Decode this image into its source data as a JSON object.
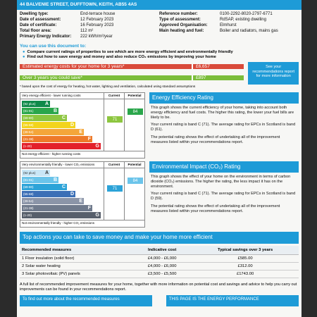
{
  "header": {
    "address": "44 BALVENIE STREET, DUFFTOWN, KEITH, AB55 4AS"
  },
  "info_left": [
    {
      "k": "Dwelling type:",
      "v": "End-terrace house"
    },
    {
      "k": "Date of assessment:",
      "v": "12 February 2023"
    },
    {
      "k": "Date of certificate:",
      "v": "16 February 2023"
    },
    {
      "k": "Total floor area:",
      "v": "112 m²"
    },
    {
      "k": "Primary Energy Indicator:",
      "v": "222 kWh/m²/year"
    }
  ],
  "info_right": [
    {
      "k": "Reference number:",
      "v": "0100-2292-8020-2797-6771"
    },
    {
      "k": "Type of assessment:",
      "v": "RdSAP, existing dwelling"
    },
    {
      "k": "Approved Organisation:",
      "v": "Elmhurst"
    },
    {
      "k": "Main heating and fuel:",
      "v": "Boiler and radiators, mains gas"
    }
  ],
  "use_doc": {
    "heading": "You can use this document to:",
    "bullets": [
      "Compare current ratings of properties to see which are more energy efficient and environmentally friendly",
      "Find out how to save energy and money and also reduce CO₂ emissions by improving your home"
    ]
  },
  "costs": {
    "row1_label": "Estimated energy costs for your home for 3 years*",
    "row1_amount": "£6,657",
    "row2_label": "Over 3 years you could save*",
    "row2_amount": "£897",
    "see_box": "See your recommendations report for more information",
    "footnote": "* based upon the cost of energy for heating, hot water, lighting and ventilation, calculated using standard assumptions"
  },
  "eer": {
    "top_label": "Very energy efficient - lower running costs",
    "bottom_label": "Not energy efficient - higher running costs",
    "col_current": "Current",
    "col_potential": "Potential",
    "bands": [
      {
        "range": "(92 plus)",
        "letter": "A"
      },
      {
        "range": "(81-91)",
        "letter": "B"
      },
      {
        "range": "(69-80)",
        "letter": "C"
      },
      {
        "range": "(55-68)",
        "letter": "D"
      },
      {
        "range": "(39-54)",
        "letter": "E"
      },
      {
        "range": "(21-38)",
        "letter": "F"
      },
      {
        "range": "(1-20)",
        "letter": "G"
      }
    ],
    "current": "71",
    "potential": "84",
    "title": "Energy Efficiency Rating",
    "p1": "This graph shows the current efficiency of your home, taking into account both energy efficiency and fuel costs. The higher this rating, the lower your fuel bills are likely to be.",
    "p2": "Your current rating is band C (71). The average rating for EPCs in Scotland is band D (61).",
    "p3": "The potential rating shows the effect of undertaking all of the improvement measures listed within your recommendations report."
  },
  "eir": {
    "top_label": "Very environmentally friendly - lower CO₂ emissions",
    "bottom_label": "Not environmentally friendly - higher CO₂ emissions",
    "col_current": "Current",
    "col_potential": "Potential",
    "bands": [
      {
        "range": "(92 plus)",
        "letter": "A"
      },
      {
        "range": "(81-91)",
        "letter": "B"
      },
      {
        "range": "(69-80)",
        "letter": "C"
      },
      {
        "range": "(55-68)",
        "letter": "D"
      },
      {
        "range": "(39-54)",
        "letter": "E"
      },
      {
        "range": "(21-38)",
        "letter": "F"
      },
      {
        "range": "(1-20)",
        "letter": "G"
      }
    ],
    "current": "71",
    "potential": "84",
    "title": "Environmental Impact (CO₂) Rating",
    "p1": "This graph shows the effect of your home on the environment in terms of carbon dioxide (CO₂) emissions. The higher the rating, the less impact it has on the environment.",
    "p2": "Your current rating is band C (71). The average rating for EPCs in Scotland is band D (59).",
    "p3": "The potential rating shows the effect of undertaking all of the improvement measures listed within your recommendations report."
  },
  "actions": {
    "title": "Top actions you can take to save money and make your home more efficient",
    "headers": [
      "Recommended measures",
      "Indicative cost",
      "Typical savings over 3 years"
    ],
    "rows": [
      [
        "1 Floor insulation (solid floor)",
        "£4,000 - £6,000",
        "£585.00"
      ],
      [
        "2 Solar water heating",
        "£4,000 - £6,000",
        "£312.00"
      ],
      [
        "3 Solar photovoltaic (PV) panels",
        "£3,500 - £5,500",
        "£1743.00"
      ]
    ]
  },
  "para": "A full list of recommended improvement measures for your home, together with more information on potential cost and savings and advice to help you carry out improvements can be found in your recommendations report.",
  "bottom": {
    "left": "To find out more about the recommended measures",
    "right": "THIS PAGE IS THE ENERGY PERFORMANCE"
  },
  "colors": {
    "blue": "#1e9bd7",
    "A": "#0f8a4a",
    "B": "#2aa64b",
    "C": "#8dc63f",
    "D": "#f2d41c",
    "E": "#f4a63a",
    "F": "#ee7a2a",
    "G": "#e3202a",
    "EA": "#c9e6f6",
    "EB": "#6bc4ea",
    "EC": "#2ca3d8",
    "ED": "#3b6fb6",
    "EE": "#8b95a8",
    "EF": "#6f7a8c",
    "EG": "#575f6b"
  }
}
